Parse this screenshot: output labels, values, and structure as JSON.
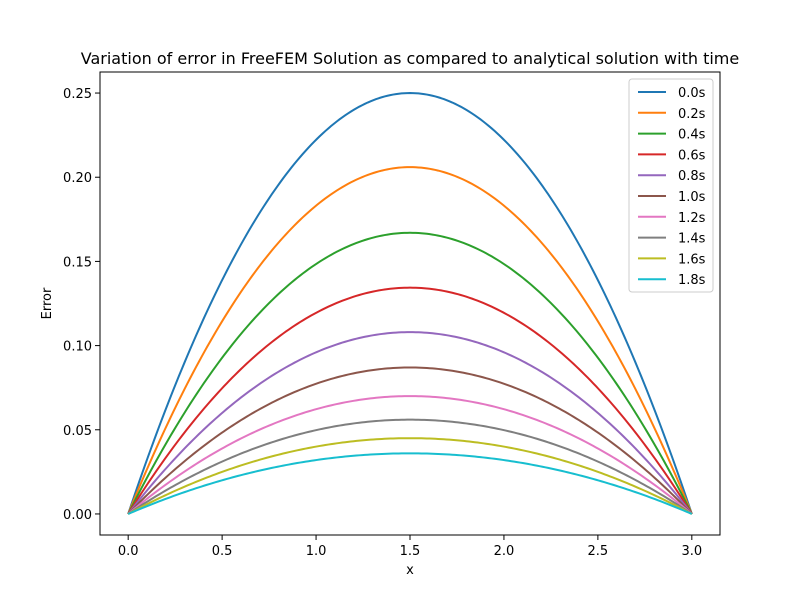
{
  "chart_data": {
    "type": "line",
    "title": "Variation of error in FreeFEM Solution as compared to analytical solution with time",
    "xlabel": "x",
    "ylabel": "Error",
    "xlim": [
      -0.15,
      3.15
    ],
    "ylim": [
      -0.0125,
      0.2625
    ],
    "xticks": [
      0.0,
      0.5,
      1.0,
      1.5,
      2.0,
      2.5,
      3.0
    ],
    "xtick_labels": [
      "0.0",
      "0.5",
      "1.0",
      "1.5",
      "2.0",
      "2.5",
      "3.0"
    ],
    "yticks": [
      0.0,
      0.05,
      0.1,
      0.15,
      0.2,
      0.25
    ],
    "ytick_labels": [
      "0.00",
      "0.05",
      "0.10",
      "0.15",
      "0.20",
      "0.25"
    ],
    "grid": false,
    "legend_position": "top-right",
    "x": [
      0.0,
      0.15,
      0.3,
      0.45,
      0.6,
      0.75,
      0.9,
      1.05,
      1.2,
      1.35,
      1.5,
      1.65,
      1.8,
      1.95,
      2.1,
      2.25,
      2.4,
      2.55,
      2.7,
      2.85,
      3.0
    ],
    "series": [
      {
        "name": "0.0s",
        "color": "#1f77b4",
        "values": [
          0.0,
          0.0475,
          0.09,
          0.1275,
          0.16,
          0.1875,
          0.21,
          0.2275,
          0.24,
          0.2475,
          0.25,
          0.2475,
          0.24,
          0.2275,
          0.21,
          0.1875,
          0.16,
          0.1275,
          0.09,
          0.0475,
          0.0
        ]
      },
      {
        "name": "0.2s",
        "color": "#ff7f0e",
        "values": [
          0.0,
          0.0391,
          0.0742,
          0.1051,
          0.1319,
          0.1545,
          0.1731,
          0.1875,
          0.1978,
          0.204,
          0.206,
          0.204,
          0.1978,
          0.1875,
          0.1731,
          0.1545,
          0.1319,
          0.1051,
          0.0742,
          0.0391,
          0.0
        ]
      },
      {
        "name": "0.4s",
        "color": "#2ca02c",
        "values": [
          0.0,
          0.0317,
          0.0601,
          0.0852,
          0.1069,
          0.1253,
          0.1403,
          0.152,
          0.1603,
          0.1653,
          0.167,
          0.1653,
          0.1603,
          0.152,
          0.1403,
          0.1253,
          0.1069,
          0.0852,
          0.0601,
          0.0317,
          0.0
        ]
      },
      {
        "name": "0.6s",
        "color": "#d62728",
        "values": [
          0.0,
          0.0255,
          0.0484,
          0.0685,
          0.086,
          0.1008,
          0.1129,
          0.1223,
          0.129,
          0.133,
          0.1344,
          0.133,
          0.129,
          0.1223,
          0.1129,
          0.1008,
          0.086,
          0.0685,
          0.0484,
          0.0255,
          0.0
        ]
      },
      {
        "name": "0.8s",
        "color": "#9467bd",
        "values": [
          0.0,
          0.0205,
          0.0389,
          0.0551,
          0.0691,
          0.081,
          0.0907,
          0.0983,
          0.1037,
          0.1069,
          0.108,
          0.1069,
          0.1037,
          0.0983,
          0.0907,
          0.081,
          0.0691,
          0.0551,
          0.0389,
          0.0205,
          0.0
        ]
      },
      {
        "name": "1.0s",
        "color": "#8c564b",
        "values": [
          0.0,
          0.0165,
          0.0313,
          0.0444,
          0.0557,
          0.0653,
          0.0731,
          0.0792,
          0.0835,
          0.0861,
          0.087,
          0.0861,
          0.0835,
          0.0792,
          0.0731,
          0.0653,
          0.0557,
          0.0444,
          0.0313,
          0.0165,
          0.0
        ]
      },
      {
        "name": "1.2s",
        "color": "#e377c2",
        "values": [
          0.0,
          0.0133,
          0.0252,
          0.0357,
          0.0448,
          0.0525,
          0.0588,
          0.0637,
          0.0672,
          0.0693,
          0.07,
          0.0693,
          0.0672,
          0.0637,
          0.0588,
          0.0525,
          0.0448,
          0.0357,
          0.0252,
          0.0133,
          0.0
        ]
      },
      {
        "name": "1.4s",
        "color": "#7f7f7f",
        "values": [
          0.0,
          0.0106,
          0.0202,
          0.0286,
          0.0358,
          0.042,
          0.047,
          0.051,
          0.0538,
          0.0554,
          0.056,
          0.0554,
          0.0538,
          0.051,
          0.047,
          0.042,
          0.0358,
          0.0286,
          0.0202,
          0.0106,
          0.0
        ]
      },
      {
        "name": "1.6s",
        "color": "#bcbd22",
        "values": [
          0.0,
          0.0086,
          0.0162,
          0.023,
          0.0288,
          0.0338,
          0.0378,
          0.041,
          0.0432,
          0.0446,
          0.045,
          0.0446,
          0.0432,
          0.041,
          0.0378,
          0.0338,
          0.0288,
          0.023,
          0.0162,
          0.0086,
          0.0
        ]
      },
      {
        "name": "1.8s",
        "color": "#17becf",
        "values": [
          0.0,
          0.0068,
          0.013,
          0.0184,
          0.023,
          0.027,
          0.0302,
          0.0328,
          0.0346,
          0.0356,
          0.036,
          0.0356,
          0.0346,
          0.0328,
          0.0302,
          0.027,
          0.023,
          0.0184,
          0.013,
          0.0068,
          0.0
        ]
      }
    ]
  }
}
